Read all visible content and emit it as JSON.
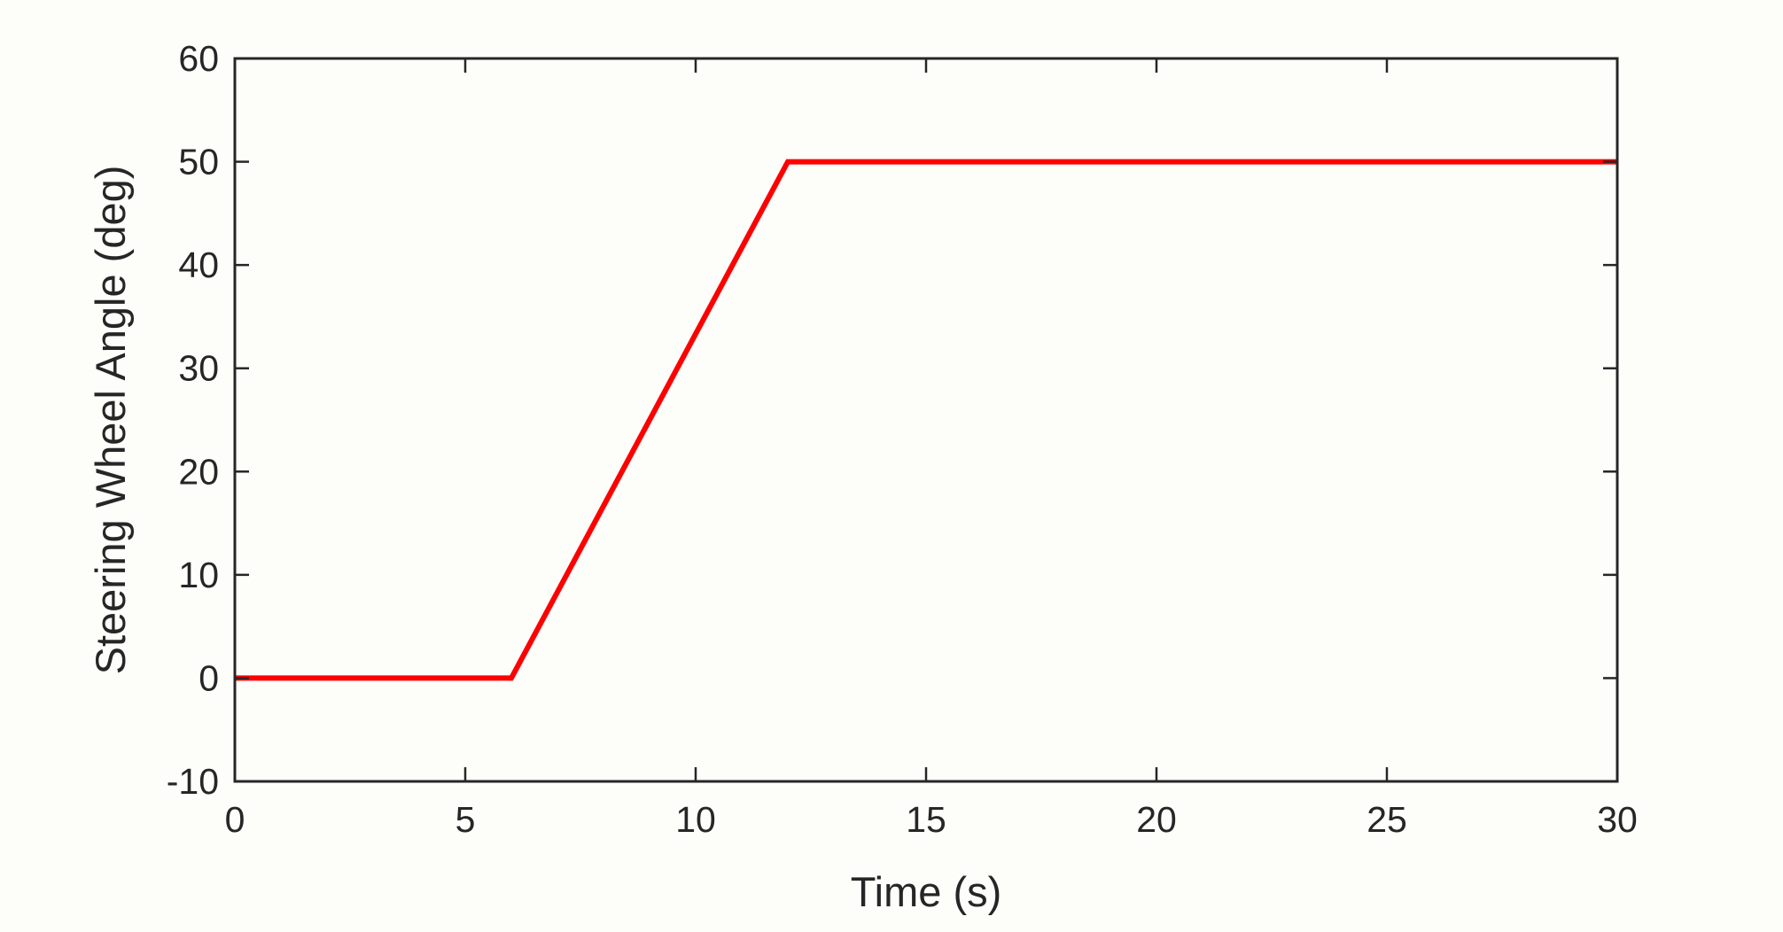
{
  "colors": {
    "background": "#FDFDFA",
    "axes": "#262626",
    "series": "#FF0000"
  },
  "chart_data": {
    "type": "line",
    "title": "",
    "xlabel": "Time (s)",
    "ylabel": "Steering Wheel Angle (deg)",
    "xlim": [
      0,
      30
    ],
    "ylim": [
      -10,
      60
    ],
    "xticks": [
      0,
      5,
      10,
      15,
      20,
      25,
      30
    ],
    "yticks": [
      -10,
      0,
      10,
      20,
      30,
      40,
      50,
      60
    ],
    "grid": false,
    "legend": "none",
    "series": [
      {
        "color": "#FF0000",
        "x": [
          0,
          6,
          12,
          30
        ],
        "y": [
          0,
          0,
          50,
          50
        ]
      }
    ]
  }
}
